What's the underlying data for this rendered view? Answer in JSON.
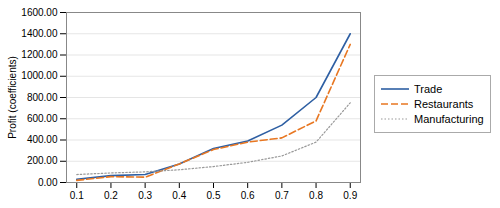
{
  "chart_data": {
    "type": "line",
    "x": [
      0.1,
      0.2,
      0.3,
      0.4,
      0.5,
      0.6,
      0.7,
      0.8,
      0.9
    ],
    "series": [
      {
        "name": "Trade",
        "color": "#2E5FA3",
        "line_style": "solid",
        "values": [
          30,
          65,
          75,
          175,
          320,
          390,
          540,
          800,
          1400
        ]
      },
      {
        "name": "Restaurants",
        "color": "#E87722",
        "line_style": "dashed",
        "values": [
          20,
          55,
          50,
          175,
          310,
          380,
          420,
          580,
          1300
        ]
      },
      {
        "name": "Manufacturing",
        "color": "#999999",
        "line_style": "dotted",
        "values": [
          75,
          90,
          100,
          120,
          150,
          190,
          250,
          380,
          750
        ]
      }
    ],
    "ylabel": "Profit (coefficients)",
    "xlim": [
      0.07,
      0.93
    ],
    "ylim": [
      0,
      1600
    ],
    "xticks": [
      0.1,
      0.2,
      0.3,
      0.4,
      0.5,
      0.6,
      0.7,
      0.8,
      0.9
    ],
    "yticks": [
      {
        "value": 0,
        "label": "0.00"
      },
      {
        "value": 200,
        "label": "200.00"
      },
      {
        "value": 400,
        "label": "400.00"
      },
      {
        "value": 600,
        "label": "600.00"
      },
      {
        "value": 800,
        "label": "800.00"
      },
      {
        "value": 1000,
        "label": "1000.00"
      },
      {
        "value": 1200,
        "label": "1200.00"
      },
      {
        "value": 1400,
        "label": "1400.00"
      },
      {
        "value": 1600,
        "label": "1600.00"
      }
    ],
    "grid": true,
    "legend": "right"
  }
}
